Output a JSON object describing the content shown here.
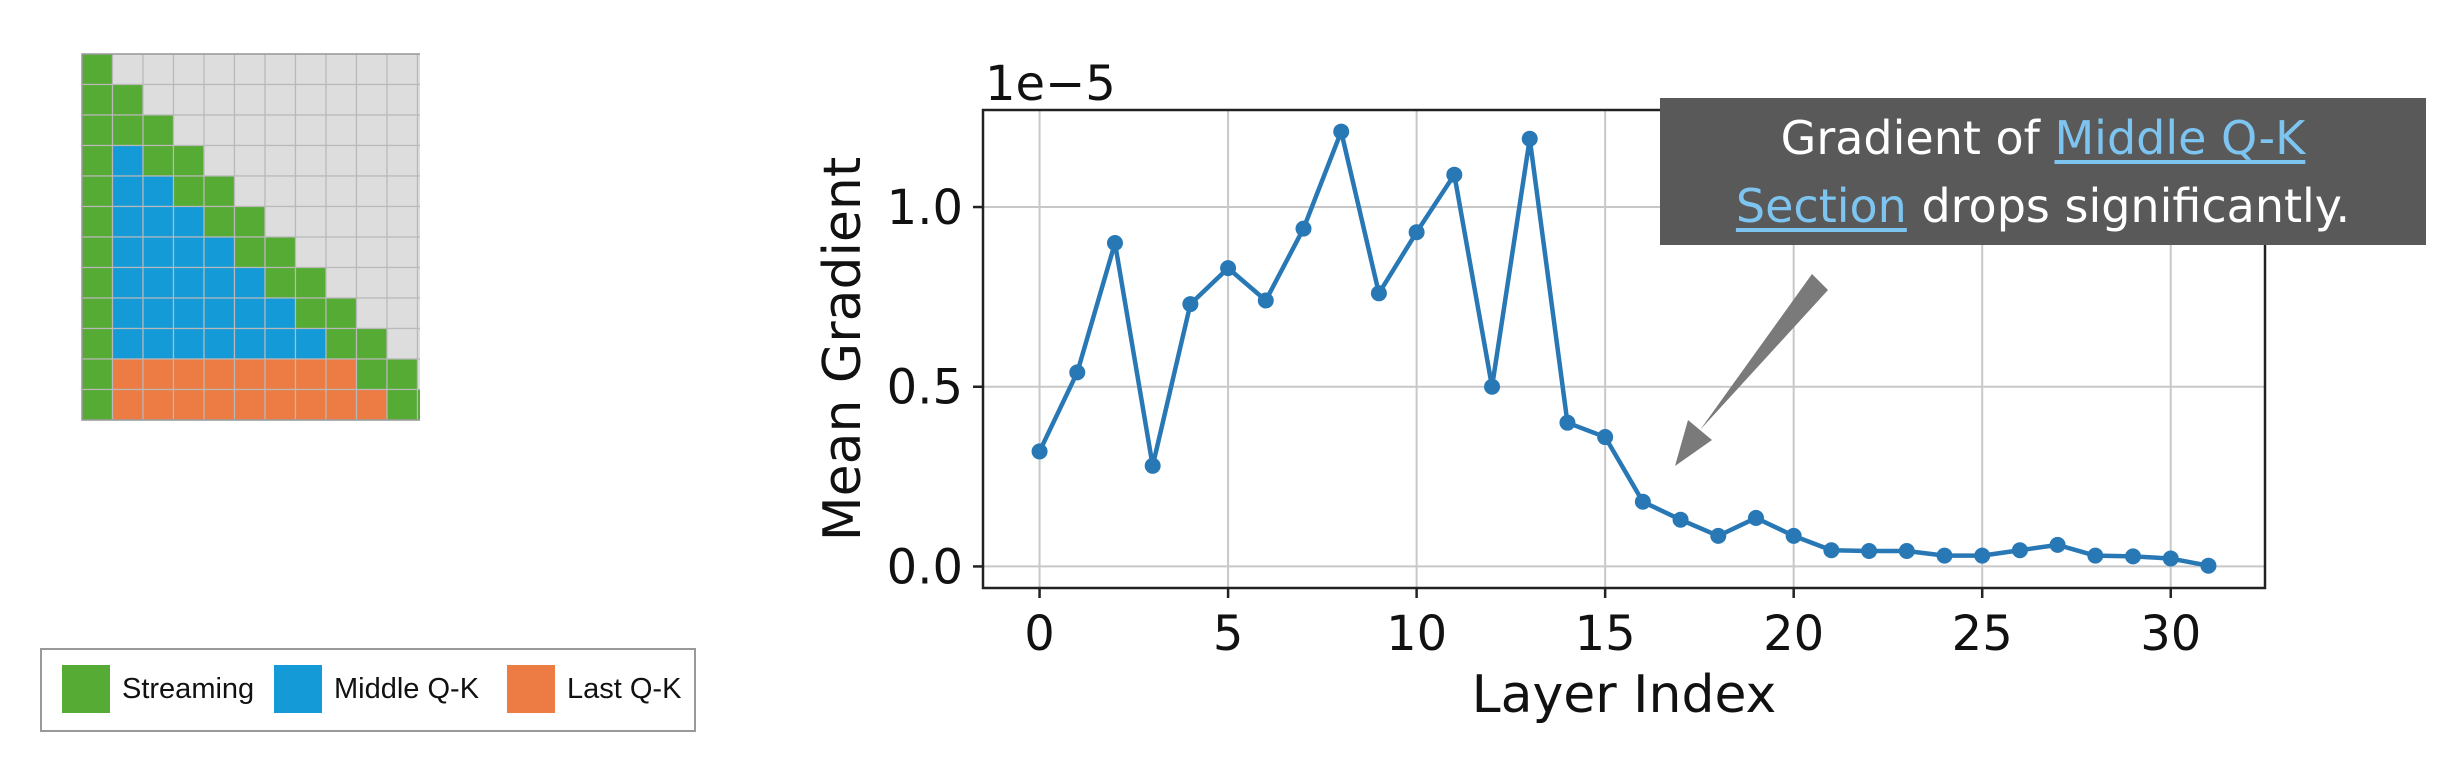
{
  "grid": {
    "size": 12,
    "streaming_diagonal_width": 2,
    "sink_columns": 1,
    "last_rows": 2,
    "colors": {
      "streaming": "#55ab33",
      "middle": "#139ad7",
      "last": "#ec7c43",
      "empty": "#dddddd",
      "line": "#b9b9b9"
    }
  },
  "legend": [
    {
      "label": "Streaming",
      "color": "#55ab33"
    },
    {
      "label": "Middle Q-K",
      "color": "#139ad7"
    },
    {
      "label": "Last Q-K",
      "color": "#ec7c43"
    }
  ],
  "callout": {
    "prefix": "Gradient of ",
    "highlight_line1": "Middle Q-K",
    "highlight_line2": "Section",
    "suffix": " drops significantly.",
    "background": "#595959",
    "highlight_color": "#7ec4f0",
    "arrow_color": "#7a7a7a"
  },
  "chart_data": {
    "type": "line",
    "xlabel": "Layer Index",
    "ylabel": "Mean Gradient",
    "scale_label": "1e−5",
    "xlim": [
      -1.5,
      32.5
    ],
    "ylim": [
      -0.06,
      1.27
    ],
    "xticks": [
      0,
      5,
      10,
      15,
      20,
      25,
      30
    ],
    "yticks": [
      0.0,
      0.5,
      1.0
    ],
    "ytick_labels": [
      "0.0",
      "0.5",
      "1.0"
    ],
    "grid": true,
    "line_color": "#2878b5",
    "series": [
      {
        "x": [
          0,
          1,
          2,
          3,
          4,
          5,
          6,
          7,
          8,
          9,
          10,
          11,
          12,
          13,
          14,
          15,
          16,
          17,
          18,
          19,
          20,
          21,
          22,
          23,
          24,
          25,
          26,
          27,
          28,
          29,
          30,
          31
        ],
        "values": [
          0.32,
          0.54,
          0.9,
          0.28,
          0.73,
          0.83,
          0.74,
          0.94,
          1.21,
          0.76,
          0.93,
          1.09,
          0.5,
          1.19,
          0.4,
          0.36,
          0.18,
          0.13,
          0.085,
          0.135,
          0.085,
          0.045,
          0.043,
          0.043,
          0.03,
          0.03,
          0.045,
          0.06,
          0.03,
          0.028,
          0.022,
          0.002
        ]
      }
    ]
  }
}
